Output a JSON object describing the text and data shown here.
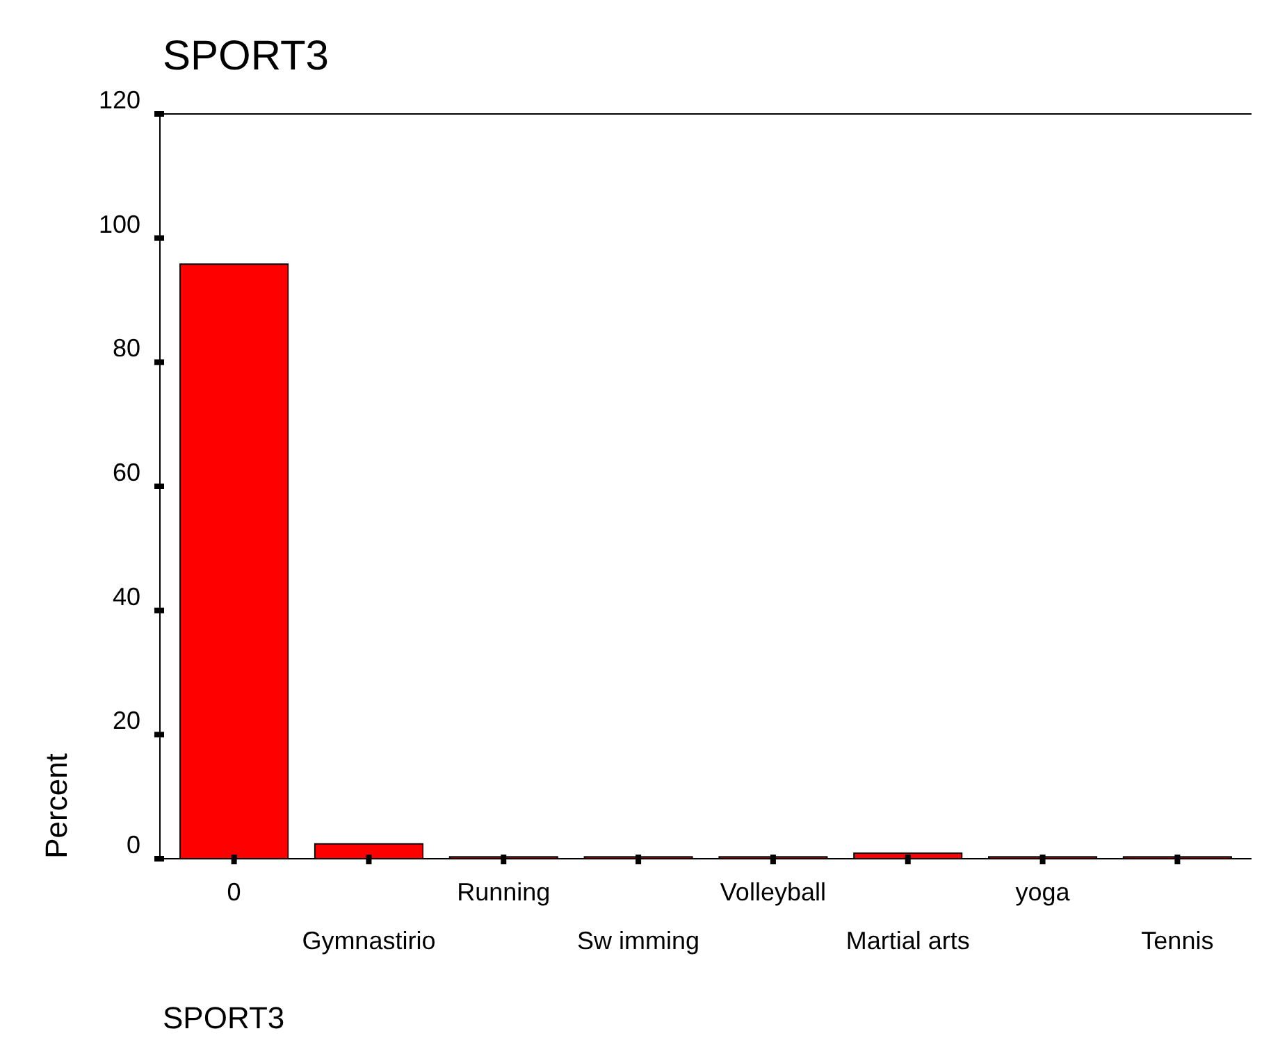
{
  "chart_data": {
    "type": "bar",
    "title": "SPORT3",
    "xlabel": "SPORT3",
    "ylabel": "Percent",
    "categories": [
      "0",
      "Gymnastirio",
      "Running",
      "Sw imming",
      "Volleyball",
      "Martial arts",
      "yoga",
      "Tennis"
    ],
    "values": [
      95.8,
      2.4,
      0.3,
      0.3,
      0.3,
      0.9,
      0.3,
      0.3
    ],
    "color": "#ff0000",
    "ylim": [
      0,
      120
    ],
    "yticks": [
      0,
      20,
      40,
      60,
      80,
      100,
      120
    ],
    "grid": false
  }
}
